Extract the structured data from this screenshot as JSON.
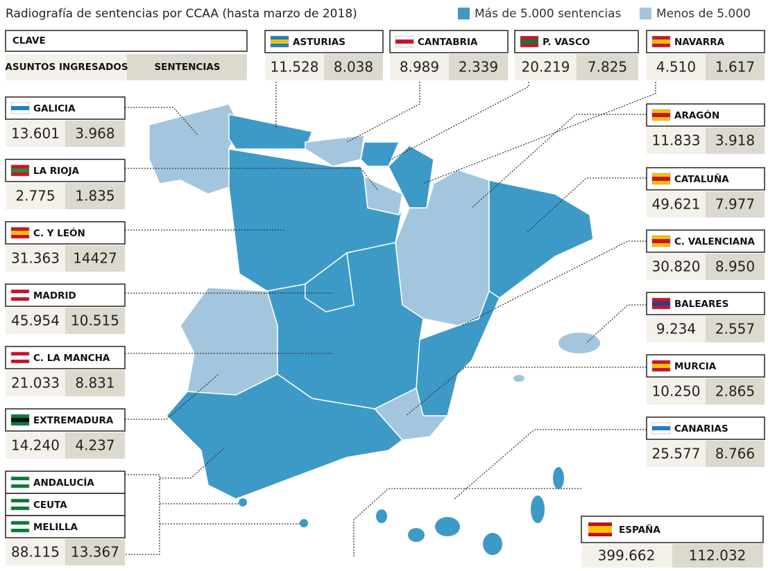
{
  "title": "Radiografía de sentencias por CCAA (hasta marzo de 2018)",
  "legend": [
    {
      "label": "Más de 5.000 sentencias",
      "color": "#3d9ac6"
    },
    {
      "label": "Menos de 5.000",
      "color": "#a3c6de"
    }
  ],
  "key": {
    "title": "CLAVE",
    "left": "ASUNTOS INGRESADOS",
    "right": "SENTENCIAS"
  },
  "regions": [
    {
      "names": [
        "ASTURIAS"
      ],
      "ingresados": "11.528",
      "sentencias": "8.038"
    },
    {
      "names": [
        "CANTABRIA"
      ],
      "ingresados": "8.989",
      "sentencias": "2.339"
    },
    {
      "names": [
        "P. VASCO"
      ],
      "ingresados": "20.219",
      "sentencias": "7.825"
    },
    {
      "names": [
        "NAVARRA"
      ],
      "ingresados": "4.510",
      "sentencias": "1.617"
    },
    {
      "names": [
        "GALICIA"
      ],
      "ingresados": "13.601",
      "sentencias": "3.968"
    },
    {
      "names": [
        "LA RIOJA"
      ],
      "ingresados": "2.775",
      "sentencias": "1.835"
    },
    {
      "names": [
        "C. Y LEÓN"
      ],
      "ingresados": "31.363",
      "sentencias": "14427"
    },
    {
      "names": [
        "MADRID"
      ],
      "ingresados": "45.954",
      "sentencias": "10.515"
    },
    {
      "names": [
        "C. LA MANCHA"
      ],
      "ingresados": "21.033",
      "sentencias": "8.831"
    },
    {
      "names": [
        "EXTREMADURA"
      ],
      "ingresados": "14.240",
      "sentencias": "4.237"
    },
    {
      "names": [
        "ANDALUCÍA",
        "CEUTA",
        "MELILLA"
      ],
      "ingresados": "88.115",
      "sentencias": "13.367"
    },
    {
      "names": [
        "ARAGÓN"
      ],
      "ingresados": "11.833",
      "sentencias": "3.918"
    },
    {
      "names": [
        "CATALUÑA"
      ],
      "ingresados": "49.621",
      "sentencias": "7.977"
    },
    {
      "names": [
        "C. VALENCIANA"
      ],
      "ingresados": "30.820",
      "sentencias": "8.950"
    },
    {
      "names": [
        "BALEARES"
      ],
      "ingresados": "9.234",
      "sentencias": "2.557"
    },
    {
      "names": [
        "MURCIA"
      ],
      "ingresados": "10.250",
      "sentencias": "2.865"
    },
    {
      "names": [
        "CANARIAS"
      ],
      "ingresados": "25.577",
      "sentencias": "8.766"
    }
  ],
  "total": {
    "name": "ESPAÑA",
    "ingresados": "399.662",
    "sentencias": "112.032"
  }
}
